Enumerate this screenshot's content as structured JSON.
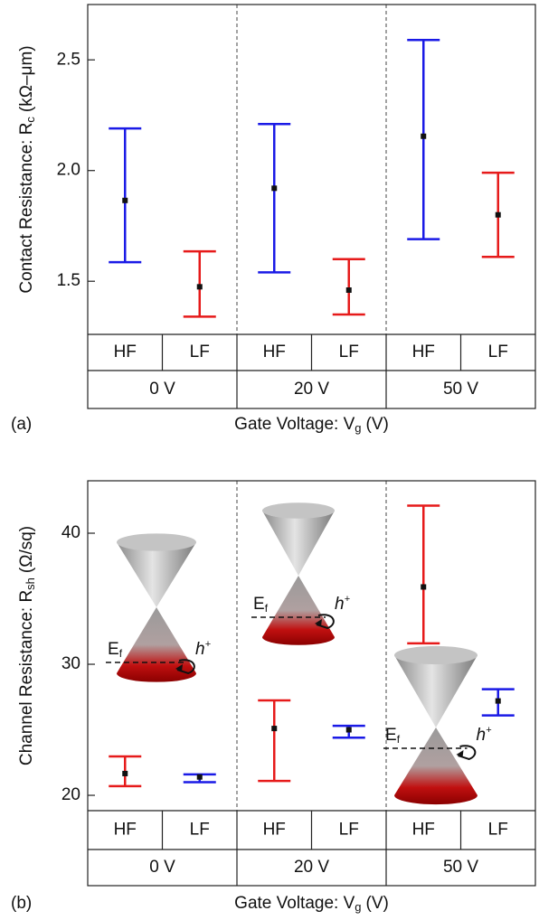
{
  "chart_data": [
    {
      "type": "errorbar",
      "panel_label": "(a)",
      "ylabel": "Contact Resistance: R",
      "ylabel_sub": "c",
      "ylabel_unit": "(kΩ–μm)",
      "xlabel": "Gate Voltage: V",
      "xlabel_sub": "g",
      "xlabel_unit": "(V)",
      "groups": [
        "0 V",
        "20 V",
        "50 V"
      ],
      "categories": [
        "HF",
        "LF",
        "HF",
        "LF",
        "HF",
        "LF"
      ],
      "colors": [
        "#1a1ae6",
        "#e61a1a",
        "#1a1ae6",
        "#e61a1a",
        "#1a1ae6",
        "#e61a1a"
      ],
      "values": [
        1.865,
        1.475,
        1.92,
        1.46,
        2.155,
        1.8
      ],
      "low": [
        1.586,
        1.34,
        1.54,
        1.35,
        1.69,
        1.61
      ],
      "high": [
        2.19,
        1.635,
        2.21,
        1.6,
        2.59,
        1.99
      ],
      "ylim": [
        1.26,
        2.75
      ],
      "yticks": [
        1.5,
        {
          "value": 2,
          "label": "2.0"
        },
        2.5
      ]
    },
    {
      "type": "errorbar",
      "panel_label": "(b)",
      "ylabel": "Channel Resistance: R",
      "ylabel_sub": "sh",
      "ylabel_unit": "(Ω/sq)",
      "xlabel": "Gate Voltage: V",
      "xlabel_sub": "g",
      "xlabel_unit": "(V)",
      "groups": [
        "0 V",
        "20 V",
        "50 V"
      ],
      "categories": [
        "HF",
        "LF",
        "HF",
        "LF",
        "HF",
        "LF"
      ],
      "colors": [
        "#e61a1a",
        "#1a1ae6",
        "#e61a1a",
        "#1a1ae6",
        "#e61a1a",
        "#1a1ae6"
      ],
      "values": [
        21.66,
        21.4,
        25.1,
        25.0,
        35.9,
        27.2
      ],
      "low": [
        20.7,
        21.0,
        21.1,
        24.4,
        31.6,
        26.1
      ],
      "high": [
        22.97,
        21.6,
        27.24,
        25.3,
        42.1,
        28.1
      ],
      "ylim": [
        18.83,
        44.0
      ],
      "yticks": [
        20,
        30,
        40
      ],
      "cones": [
        {
          "fermi": "E",
          "fermi_sub": "f",
          "carrier": "h",
          "carrier_sup": "+"
        },
        {
          "fermi": "E",
          "fermi_sub": "f",
          "carrier": "h",
          "carrier_sup": "+"
        },
        {
          "fermi": "E",
          "fermi_sub": "f",
          "carrier": "h",
          "carrier_sup": "+"
        }
      ]
    }
  ]
}
